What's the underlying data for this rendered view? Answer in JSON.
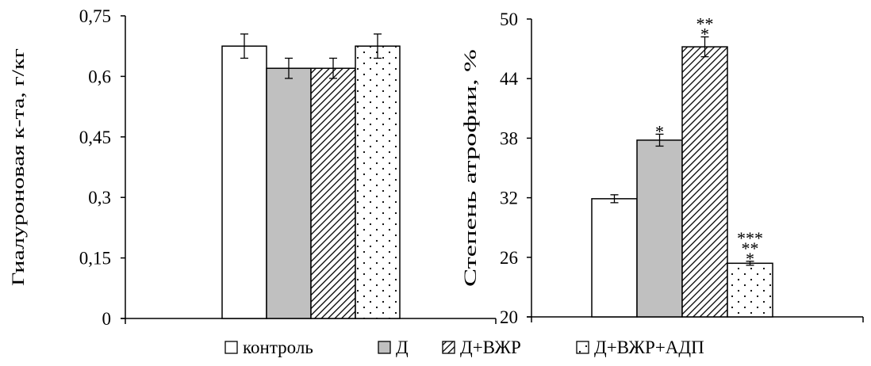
{
  "legend": {
    "items": [
      {
        "label": "контроль",
        "pattern": "white"
      },
      {
        "label": "Д",
        "pattern": "gray"
      },
      {
        "label": "Д+ВЖР",
        "pattern": "hatch"
      },
      {
        "label": "Д+ВЖР+АДП",
        "pattern": "dots"
      }
    ]
  },
  "colors": {
    "gray_fill": "#c0c0c0",
    "stroke": "#000000",
    "background": "#ffffff"
  },
  "chart_data": [
    {
      "type": "bar",
      "ylabel": "Гиалуроновая к-та, г/кг",
      "xlabel": "",
      "ylim": [
        0,
        0.75
      ],
      "yticks": [
        0,
        0.15,
        0.3,
        0.45,
        0.6,
        0.75
      ],
      "ytick_labels": [
        "0",
        "0,15",
        "0,3",
        "0,45",
        "0,6",
        "0,75"
      ],
      "grid": false,
      "legend_position": "bottom",
      "series": [
        {
          "name": "контроль",
          "values": [
            0.675
          ],
          "error": [
            0.03
          ],
          "annotation": ""
        },
        {
          "name": "Д",
          "values": [
            0.62
          ],
          "error": [
            0.025
          ],
          "annotation": ""
        },
        {
          "name": "Д+ВЖР",
          "values": [
            0.62
          ],
          "error": [
            0.025
          ],
          "annotation": ""
        },
        {
          "name": "Д+ВЖР+АДП",
          "values": [
            0.675
          ],
          "error": [
            0.03
          ],
          "annotation": ""
        }
      ]
    },
    {
      "type": "bar",
      "ylabel": "Степень атрофии, %",
      "xlabel": "",
      "ylim": [
        20,
        50
      ],
      "yticks": [
        20,
        26,
        32,
        38,
        44,
        50
      ],
      "ytick_labels": [
        "20",
        "26",
        "32",
        "38",
        "44",
        "50"
      ],
      "grid": false,
      "legend_position": "bottom",
      "series": [
        {
          "name": "контроль",
          "values": [
            31.9
          ],
          "error": [
            0.4
          ],
          "annotation": ""
        },
        {
          "name": "Д",
          "values": [
            37.8
          ],
          "error": [
            0.6
          ],
          "annotation": "*"
        },
        {
          "name": "Д+ВЖР",
          "values": [
            47.2
          ],
          "error": [
            1.0
          ],
          "annotation": "**\n*"
        },
        {
          "name": "Д+ВЖР+АДП",
          "values": [
            25.4
          ],
          "error": [
            0.2
          ],
          "annotation": "***\n**\n*"
        }
      ]
    }
  ]
}
